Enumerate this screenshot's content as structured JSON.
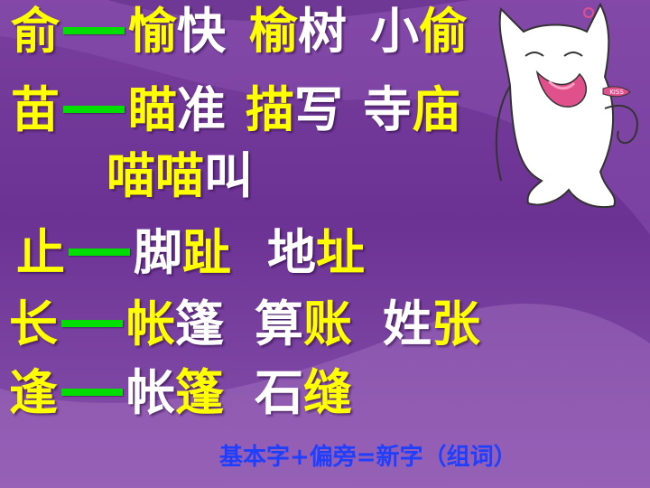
{
  "rows": [
    [
      {
        "t": "俞",
        "c": "y"
      },
      {
        "dash": true
      },
      {
        "t": "愉",
        "c": "y"
      },
      {
        "t": "快",
        "c": "w"
      },
      {
        "sp": true
      },
      {
        "t": "榆",
        "c": "y"
      },
      {
        "t": "树",
        "c": "w"
      },
      {
        "sp": true
      },
      {
        "t": "小",
        "c": "w"
      },
      {
        "t": "偷",
        "c": "y"
      }
    ],
    [
      {
        "t": "苗",
        "c": "y"
      },
      {
        "dash": true
      },
      {
        "t": "瞄",
        "c": "y"
      },
      {
        "t": "准",
        "c": "w"
      },
      {
        "sp": true
      },
      {
        "t": "描",
        "c": "y"
      },
      {
        "t": "写",
        "c": "w"
      },
      {
        "sp": true
      },
      {
        "t": "寺",
        "c": "w"
      },
      {
        "t": "庙",
        "c": "y"
      }
    ],
    [
      {
        "t": "喵喵",
        "c": "y"
      },
      {
        "t": "叫",
        "c": "w"
      }
    ],
    [
      {
        "t": "止",
        "c": "y"
      },
      {
        "dash": true
      },
      {
        "t": "脚",
        "c": "w"
      },
      {
        "t": "趾",
        "c": "y"
      },
      {
        "sp": true
      },
      {
        "t": "地",
        "c": "w"
      },
      {
        "t": "址",
        "c": "y"
      }
    ],
    [
      {
        "t": "长",
        "c": "y"
      },
      {
        "dash": true
      },
      {
        "t": "帐",
        "c": "y"
      },
      {
        "t": "篷",
        "c": "w"
      },
      {
        "sp": true
      },
      {
        "t": "算",
        "c": "w"
      },
      {
        "t": "账",
        "c": "y"
      },
      {
        "sp": true
      },
      {
        "t": "姓",
        "c": "w"
      },
      {
        "t": "张",
        "c": "y"
      }
    ],
    [
      {
        "t": "逢",
        "c": "y"
      },
      {
        "dash": true
      },
      {
        "t": "帐",
        "c": "w"
      },
      {
        "t": "篷",
        "c": "y"
      },
      {
        "sp": true
      },
      {
        "t": "石",
        "c": "w"
      },
      {
        "t": "缝",
        "c": "y"
      }
    ]
  ],
  "footer": "基本字+偏旁=新字（组词）",
  "cat_badge": "KISS",
  "colors": {
    "highlight": "#ffff00",
    "plain": "#ffffff",
    "dash": "#00dd00",
    "footer": "#1e3fff",
    "background": "#6b3294"
  }
}
